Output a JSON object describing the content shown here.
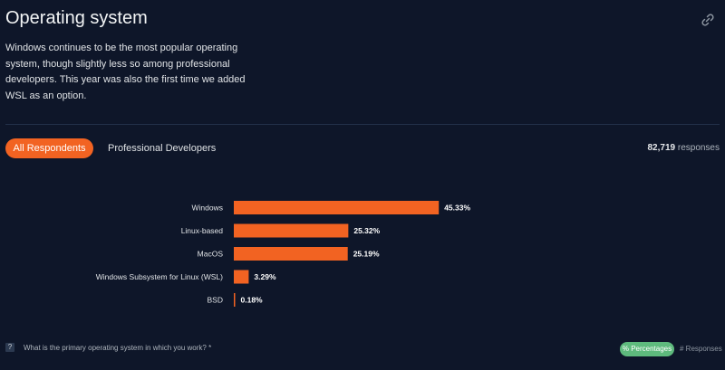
{
  "header": {
    "title": "Operating system",
    "description": "Windows continues to be the most popular operating system, though slightly less so among professional developers. This year was also the first time we added WSL as an option.",
    "link_icon": "link-icon"
  },
  "tabs": [
    {
      "label": "All Respondents",
      "active": true
    },
    {
      "label": "Professional Developers",
      "active": false
    }
  ],
  "responses": {
    "count": "82,719",
    "label": "responses"
  },
  "colors": {
    "bar": "#f26322",
    "accent_green": "#5eba7d",
    "background": "#0e1629"
  },
  "chart_data": {
    "type": "bar",
    "orientation": "horizontal",
    "categories": [
      "Windows",
      "Linux-based",
      "MacOS",
      "Windows Subsystem for Linux (WSL)",
      "BSD"
    ],
    "values": [
      45.33,
      25.32,
      25.19,
      3.29,
      0.18
    ],
    "value_labels": [
      "45.33%",
      "25.32%",
      "25.19%",
      "3.29%",
      "0.18%"
    ],
    "xlim": [
      0,
      100
    ],
    "unit": "%"
  },
  "footer": {
    "question": "What is the primary operating system in which you work? *",
    "question_icon": "question-icon",
    "toggle_active": "% Percentages",
    "toggle_inactive": "# Responses"
  }
}
